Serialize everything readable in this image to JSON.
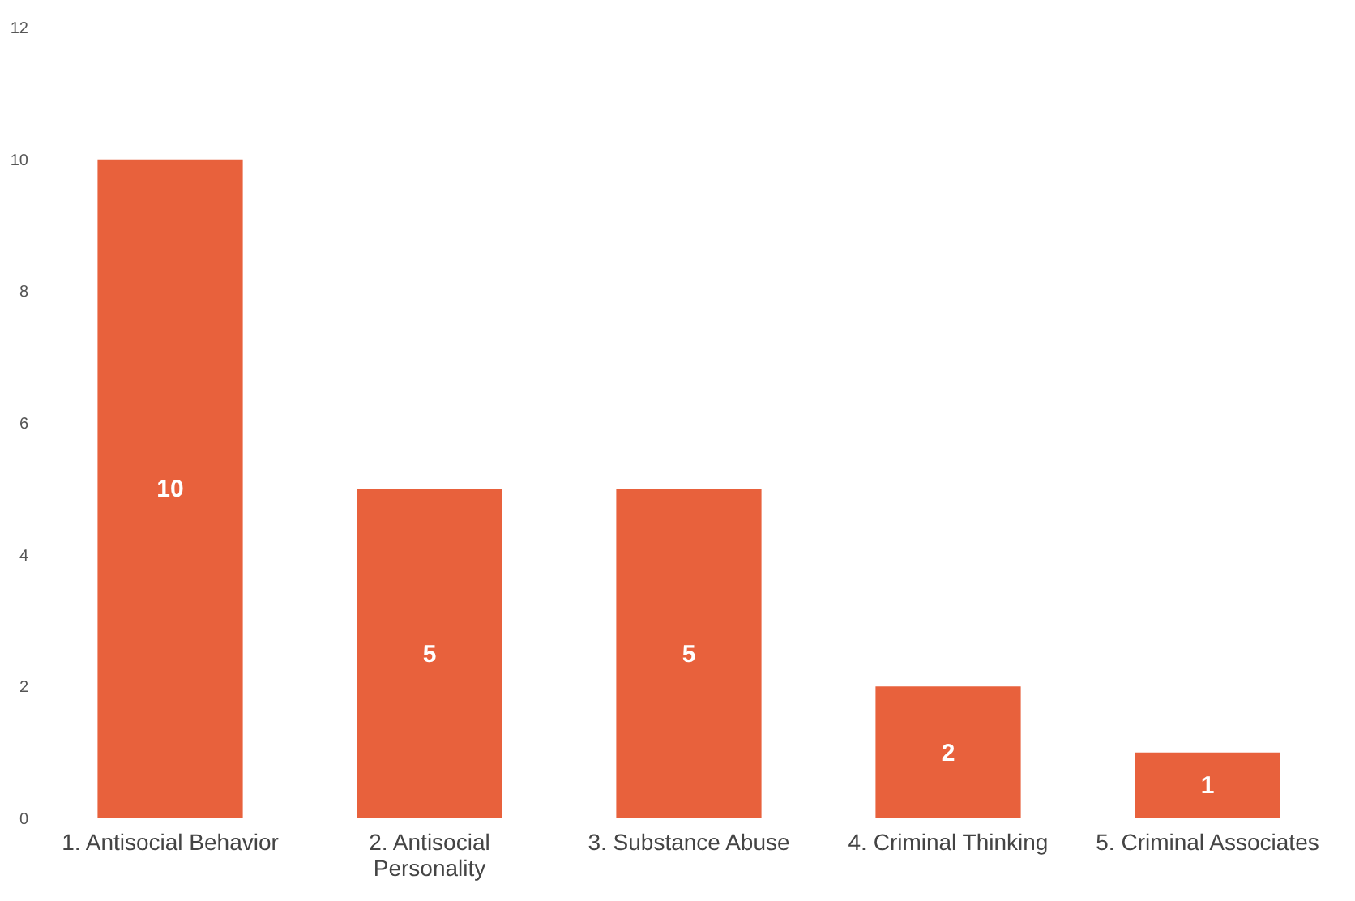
{
  "chart_data": {
    "type": "bar",
    "categories": [
      "1. Antisocial Behavior",
      "2. Antisocial Personality",
      "3. Substance Abuse",
      "4. Criminal Thinking",
      "5. Criminal Associates"
    ],
    "values": [
      10,
      5,
      5,
      2,
      1
    ],
    "color": "#e8613c",
    "ylim": [
      0,
      12
    ],
    "yticks": [
      0,
      2,
      4,
      6,
      8,
      10,
      12
    ],
    "grid": false,
    "data_labels": true
  }
}
